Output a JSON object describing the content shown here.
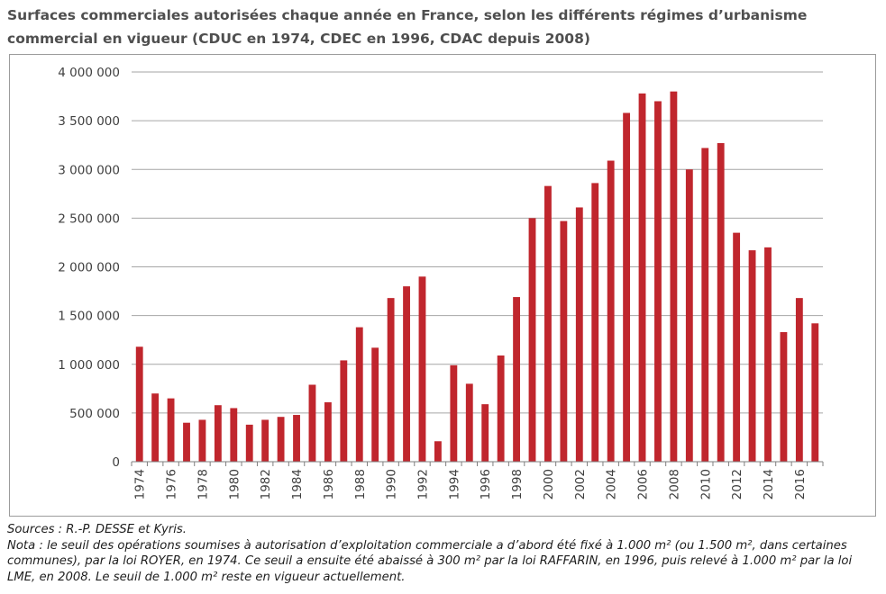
{
  "title": "Surfaces commerciales autorisées chaque année en France, selon les différents régimes d’urbanisme commercial en vigueur (CDUC en 1974, CDEC en 1996, CDAC depuis 2008)",
  "notes": {
    "sources": "Sources : R.-P. DESSE et Kyris.",
    "nota": "Nota : le seuil des opérations soumises à autorisation d’exploitation commerciale a d’abord été fixé à 1.000 m² (ou 1.500 m², dans certaines communes), par la loi ROYER, en 1974. Ce seuil a ensuite été abaissé à 300 m² par la loi RAFFARIN, en 1996, puis relevé à 1.000 m² par la loi LME, en 2008. Le seuil de 1.000 m² reste en vigueur actuellement."
  },
  "colors": {
    "bar": "#c0262d",
    "grid": "#a6a6a6",
    "axis": "#7f7f7f",
    "text": "#404040"
  },
  "chart_data": {
    "type": "bar",
    "title": "Surfaces commerciales autorisées chaque année en France, selon les différents régimes d’urbanisme commercial en vigueur (CDUC en 1974, CDEC en 1996, CDAC depuis 2008)",
    "xlabel": "",
    "ylabel": "",
    "ylim": [
      0,
      4000000
    ],
    "yticks": [
      0,
      500000,
      1000000,
      1500000,
      2000000,
      2500000,
      3000000,
      3500000,
      4000000
    ],
    "ytick_labels": [
      "0",
      "500 000",
      "1 000 000",
      "1 500 000",
      "2 000 000",
      "2 500 000",
      "3 000 000",
      "3 500 000",
      "4 000 000"
    ],
    "grid": true,
    "legend": "none",
    "categories": [
      "1974",
      "1975",
      "1976",
      "1977",
      "1978",
      "1979",
      "1980",
      "1981",
      "1982",
      "1983",
      "1984",
      "1985",
      "1986",
      "1987",
      "1988",
      "1989",
      "1990",
      "1991",
      "1992",
      "1993",
      "1994",
      "1995",
      "1996",
      "1997",
      "1998",
      "1999",
      "2000",
      "2001",
      "2002",
      "2003",
      "2004",
      "2005",
      "2006",
      "2007",
      "2008",
      "2009",
      "2010",
      "2011",
      "2012",
      "2013",
      "2014",
      "2015",
      "2016",
      "2017"
    ],
    "xtick_labels": [
      "1974",
      "",
      "1976",
      "",
      "1978",
      "",
      "1980",
      "",
      "1982",
      "",
      "1984",
      "",
      "1986",
      "",
      "1988",
      "",
      "1990",
      "",
      "1992",
      "",
      "1994",
      "",
      "1996",
      "",
      "1998",
      "",
      "2000",
      "",
      "2002",
      "",
      "2004",
      "",
      "2006",
      "",
      "2008",
      "",
      "2010",
      "",
      "2012",
      "",
      "2014",
      "",
      "2016",
      ""
    ],
    "values": [
      1180000,
      700000,
      650000,
      400000,
      430000,
      580000,
      550000,
      380000,
      430000,
      460000,
      480000,
      790000,
      610000,
      1040000,
      1380000,
      1170000,
      1680000,
      1800000,
      1900000,
      210000,
      990000,
      800000,
      590000,
      1090000,
      1690000,
      2500000,
      2830000,
      2470000,
      2610000,
      2860000,
      3090000,
      3580000,
      3780000,
      3700000,
      3800000,
      3000000,
      3220000,
      3270000,
      2350000,
      2170000,
      2200000,
      1330000,
      1680000,
      1420000
    ]
  }
}
